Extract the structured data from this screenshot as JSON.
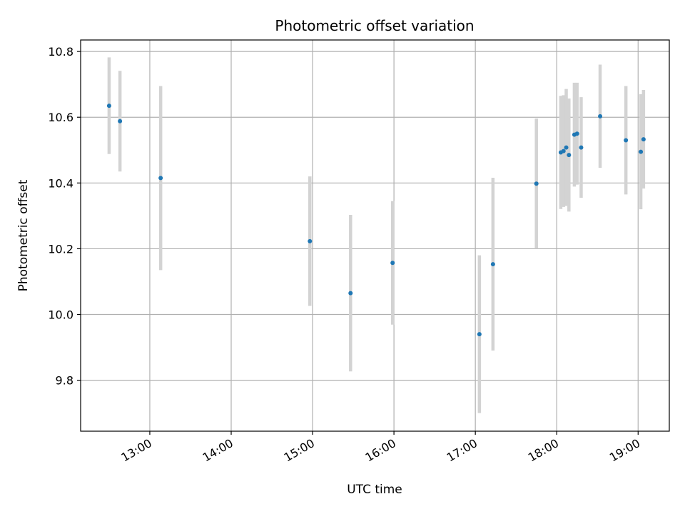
{
  "chart_data": {
    "type": "scatter",
    "title": "Photometric offset variation",
    "xlabel": "UTC time",
    "ylabel": "Photometric offset",
    "x_is_time": true,
    "xlim": [
      "12:09",
      "19:23"
    ],
    "ylim": [
      9.645,
      10.835
    ],
    "x_ticks": [
      "13:00",
      "14:00",
      "15:00",
      "16:00",
      "17:00",
      "18:00",
      "19:00"
    ],
    "y_ticks": [
      9.8,
      10.0,
      10.2,
      10.4,
      10.6,
      10.8
    ],
    "y_tick_labels": [
      "9.8",
      "10.0",
      "10.2",
      "10.4",
      "10.6",
      "10.8"
    ],
    "grid": true,
    "colors": {
      "point": "#1f77b4",
      "errorbar": "#d3d3d3",
      "grid": "#b0b0b0"
    },
    "points": [
      {
        "x": "12:30",
        "y": 10.635,
        "err": 0.147
      },
      {
        "x": "12:38",
        "y": 10.588,
        "err": 0.153
      },
      {
        "x": "13:08",
        "y": 10.415,
        "err": 0.28
      },
      {
        "x": "14:58",
        "y": 10.223,
        "err": 0.197
      },
      {
        "x": "15:28",
        "y": 10.065,
        "err": 0.238
      },
      {
        "x": "15:59",
        "y": 10.157,
        "err": 0.188
      },
      {
        "x": "17:03",
        "y": 9.94,
        "err": 0.24
      },
      {
        "x": "17:13",
        "y": 10.153,
        "err": 0.263
      },
      {
        "x": "17:45",
        "y": 10.398,
        "err": 0.198
      },
      {
        "x": "18:03",
        "y": 10.493,
        "err": 0.172
      },
      {
        "x": "18:05",
        "y": 10.497,
        "err": 0.17
      },
      {
        "x": "18:07",
        "y": 10.508,
        "err": 0.178
      },
      {
        "x": "18:09",
        "y": 10.485,
        "err": 0.172
      },
      {
        "x": "18:13",
        "y": 10.547,
        "err": 0.158
      },
      {
        "x": "18:15",
        "y": 10.55,
        "err": 0.155
      },
      {
        "x": "18:18",
        "y": 10.508,
        "err": 0.153
      },
      {
        "x": "18:32",
        "y": 10.603,
        "err": 0.157
      },
      {
        "x": "18:51",
        "y": 10.53,
        "err": 0.165
      },
      {
        "x": "19:02",
        "y": 10.495,
        "err": 0.175
      },
      {
        "x": "19:04",
        "y": 10.533,
        "err": 0.15
      }
    ]
  }
}
